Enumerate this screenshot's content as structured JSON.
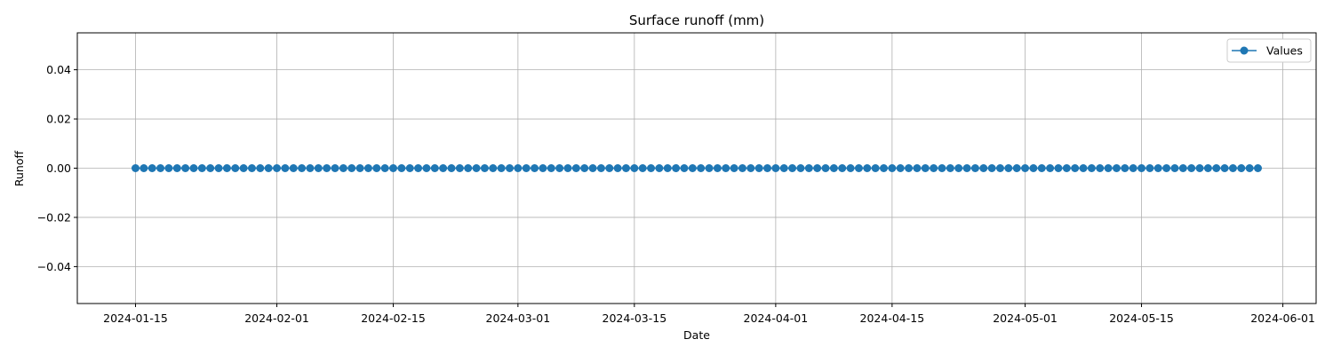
{
  "chart_data": {
    "type": "line",
    "title": "Surface runoff (mm)",
    "xlabel": "Date",
    "ylabel": "Runoff",
    "x_start": "2024-01-15",
    "x_end": "2024-05-29",
    "x_step_days": 1,
    "y_value": 0.0,
    "xlim": [
      "2024-01-08",
      "2024-06-05"
    ],
    "ylim": [
      -0.055,
      0.055
    ],
    "xticks": [
      "2024-01-15",
      "2024-02-01",
      "2024-02-15",
      "2024-03-01",
      "2024-03-15",
      "2024-04-01",
      "2024-04-15",
      "2024-05-01",
      "2024-05-15",
      "2024-06-01"
    ],
    "yticks": [
      -0.04,
      -0.02,
      0.0,
      0.02,
      0.04
    ],
    "ytick_labels": [
      "−0.04",
      "−0.02",
      "0.00",
      "0.02",
      "0.04"
    ],
    "grid": true,
    "legend": {
      "placement": "top-right",
      "entries": [
        "Values"
      ]
    },
    "series": [
      {
        "name": "Values",
        "color": "#1f77b4",
        "marker": "circle"
      }
    ]
  }
}
